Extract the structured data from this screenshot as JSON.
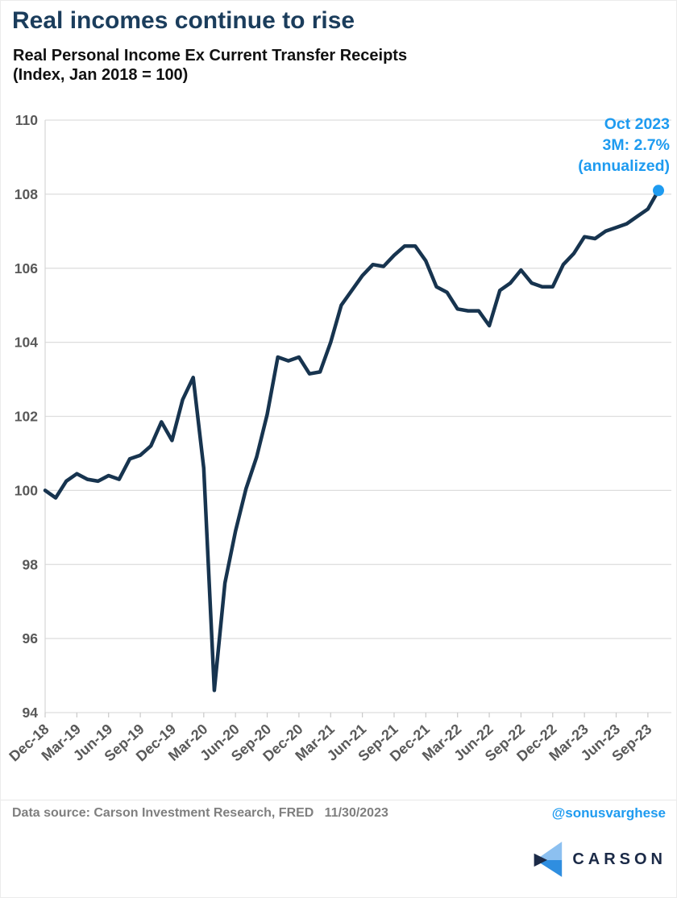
{
  "header": {
    "title": "Real incomes continue to rise",
    "subtitle_line1": "Real Personal Income Ex Current Transfer Receipts",
    "subtitle_line2": "(Index, Jan 2018 = 100)"
  },
  "annotation": {
    "line1": "Oct 2023",
    "line2": "3M: 2.7%",
    "line3": "(annualized)"
  },
  "footer": {
    "data_source": "Data source: Carson Investment Research, FRED   11/30/2023",
    "handle": "@sonusvarghese",
    "logo_text": "CARSON"
  },
  "colors": {
    "title_navy": "#1b3d5c",
    "line_navy": "#17344f",
    "accent_blue": "#1e9bf0",
    "axis_gray": "#595959",
    "gridline_gray": "#dddddd",
    "footer_gray": "#7f7f7f",
    "logo_light_blue": "#8cc0f0",
    "logo_mid_blue": "#2f8ee0",
    "logo_dark_navy": "#1b2a47"
  },
  "chart_data": {
    "type": "line",
    "title": "Real Personal Income Ex Current Transfer Receipts (Index, Jan 2018 = 100)",
    "xlabel": "",
    "ylabel": "",
    "ylim": [
      94,
      110
    ],
    "yticks": [
      94,
      96,
      98,
      100,
      102,
      104,
      106,
      108,
      110
    ],
    "grid": "horizontal",
    "legend": "none",
    "x_tick_labels": [
      "Dec-18",
      "Mar-19",
      "Jun-19",
      "Sep-19",
      "Dec-19",
      "Mar-20",
      "Jun-20",
      "Sep-20",
      "Dec-20",
      "Mar-21",
      "Jun-21",
      "Sep-21",
      "Dec-21",
      "Mar-22",
      "Jun-22",
      "Sep-22",
      "Dec-22",
      "Mar-23",
      "Jun-23",
      "Sep-23"
    ],
    "x_tick_every_months": 3,
    "months": [
      "Dec-18",
      "Jan-19",
      "Feb-19",
      "Mar-19",
      "Apr-19",
      "May-19",
      "Jun-19",
      "Jul-19",
      "Aug-19",
      "Sep-19",
      "Oct-19",
      "Nov-19",
      "Dec-19",
      "Jan-20",
      "Feb-20",
      "Mar-20",
      "Apr-20",
      "May-20",
      "Jun-20",
      "Jul-20",
      "Aug-20",
      "Sep-20",
      "Oct-20",
      "Nov-20",
      "Dec-20",
      "Jan-21",
      "Feb-21",
      "Mar-21",
      "Apr-21",
      "May-21",
      "Jun-21",
      "Jul-21",
      "Aug-21",
      "Sep-21",
      "Oct-21",
      "Nov-21",
      "Dec-21",
      "Jan-22",
      "Feb-22",
      "Mar-22",
      "Apr-22",
      "May-22",
      "Jun-22",
      "Jul-22",
      "Aug-22",
      "Sep-22",
      "Oct-22",
      "Nov-22",
      "Dec-22",
      "Jan-23",
      "Feb-23",
      "Mar-23",
      "Apr-23",
      "May-23",
      "Jun-23",
      "Jul-23",
      "Aug-23",
      "Sep-23",
      "Oct-23"
    ],
    "values": [
      100.0,
      99.8,
      100.25,
      100.45,
      100.3,
      100.25,
      100.4,
      100.3,
      100.85,
      100.95,
      101.2,
      101.85,
      101.35,
      102.45,
      103.05,
      100.6,
      94.6,
      97.5,
      98.9,
      100.05,
      100.9,
      102.05,
      103.6,
      103.5,
      103.6,
      103.15,
      103.2,
      104.0,
      105.0,
      105.4,
      105.8,
      106.1,
      106.05,
      106.35,
      106.6,
      106.6,
      106.2,
      105.5,
      105.35,
      104.9,
      104.85,
      104.85,
      104.45,
      105.4,
      105.6,
      105.95,
      105.6,
      105.5,
      105.5,
      106.1,
      106.4,
      106.85,
      106.8,
      107.0,
      107.1,
      107.2,
      107.4,
      107.6,
      108.1
    ],
    "last_point": {
      "month": "Oct-23",
      "value": 108.1,
      "marker": "dot"
    }
  }
}
